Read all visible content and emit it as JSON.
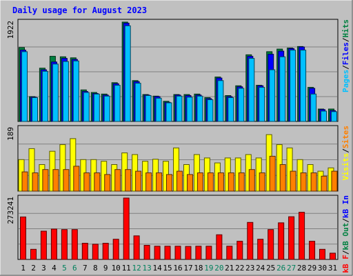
{
  "chart_data": {
    "type": "bar",
    "title": "Daily usage for August 2023",
    "categories": [
      "1",
      "2",
      "3",
      "4",
      "5",
      "6",
      "7",
      "8",
      "9",
      "10",
      "11",
      "12",
      "13",
      "14",
      "15",
      "16",
      "17",
      "18",
      "19",
      "20",
      "21",
      "22",
      "23",
      "24",
      "25",
      "26",
      "27",
      "28",
      "29",
      "30",
      "31"
    ],
    "weekend_days": [
      "5",
      "6",
      "12",
      "13",
      "19",
      "20",
      "26",
      "27"
    ],
    "panels": [
      {
        "name": "hits-files-pages",
        "ymax": 1922,
        "ymax_label": "1922",
        "series": [
          {
            "name": "Hits",
            "color": "#008040",
            "values": [
              1430,
              480,
              1030,
              1260,
              1250,
              1230,
              610,
              560,
              530,
              750,
              1922,
              790,
              520,
              490,
              390,
              520,
              520,
              530,
              460,
              860,
              500,
              690,
              1290,
              700,
              1350,
              1400,
              1420,
              1450,
              660,
              240,
              240
            ]
          },
          {
            "name": "Files",
            "color": "#0000FF",
            "values": [
              1380,
              470,
              1000,
              1150,
              1220,
              1200,
              580,
              540,
              510,
              730,
              1900,
              770,
              510,
              480,
              370,
              510,
              500,
              510,
              440,
              840,
              480,
              670,
              1260,
              690,
              1300,
              1360,
              1410,
              1440,
              640,
              230,
              210
            ]
          },
          {
            "name": "Pages",
            "color": "#00C0FF",
            "values": [
              1350,
              460,
              970,
              1110,
              1160,
              1170,
              560,
              530,
              490,
              700,
              1850,
              740,
              500,
              450,
              360,
              490,
              470,
              490,
              420,
              790,
              460,
              640,
              1220,
              660,
              1000,
              1250,
              1380,
              1380,
              530,
              200,
              190
            ]
          }
        ]
      },
      {
        "name": "visits-sites",
        "ymax": 189,
        "ymax_label": "189",
        "series": [
          {
            "name": "Visits",
            "color": "#FFFF00",
            "values": [
              95,
              128,
              80,
              120,
              140,
              158,
              95,
              95,
              90,
              80,
              115,
              110,
              90,
              96,
              90,
              130,
              80,
              110,
              100,
              85,
              100,
              100,
              110,
              100,
              170,
              140,
              130,
              95,
              80,
              60,
              70
            ]
          },
          {
            "name": "Sites",
            "color": "#FF8000",
            "values": [
              58,
              55,
              65,
              65,
              65,
              75,
              55,
              55,
              50,
              65,
              65,
              60,
              55,
              55,
              50,
              60,
              50,
              55,
              55,
              55,
              55,
              55,
              65,
              55,
              105,
              80,
              60,
              55,
              55,
              45,
              60
            ]
          }
        ]
      },
      {
        "name": "kbin-kbout-kbf",
        "ymax": 273241,
        "ymax_label": "273241",
        "series": [
          {
            "name": "kB F",
            "color": "#FF0000",
            "values": [
              189000,
              45000,
              126000,
              135000,
              133000,
              133000,
              72000,
              68000,
              72000,
              90000,
              273241,
              105000,
              63000,
              59000,
              59000,
              59000,
              58000,
              59000,
              59000,
              110000,
              59000,
              81000,
              165000,
              90000,
              133000,
              163000,
              190000,
              210000,
              81000,
              45000,
              28000
            ]
          }
        ]
      }
    ],
    "legend": {
      "panel1": [
        "Pages",
        "/",
        "Files",
        "/",
        "Hits"
      ],
      "panel2": [
        "Visits",
        "/",
        "Sites"
      ],
      "panel3": [
        "kB F",
        "/",
        "kB Out",
        "/",
        "kB In"
      ]
    },
    "legend_colors": {
      "Pages": "#00C0FF",
      "Files": "#0000FF",
      "Hits": "#008040",
      "Visits": "#FFFF00",
      "Sites": "#FF8000",
      "kB F": "#FF0000",
      "kB Out": "#008040",
      "kB In": "#0000FF",
      "/": "#000000"
    },
    "colors": {
      "background": "#C0C0C0",
      "plot_background": "#C0C0C0",
      "title": "#0000FF",
      "grid": "#808080",
      "weekday_label": "#000000",
      "weekend_label": "#00805C"
    }
  }
}
